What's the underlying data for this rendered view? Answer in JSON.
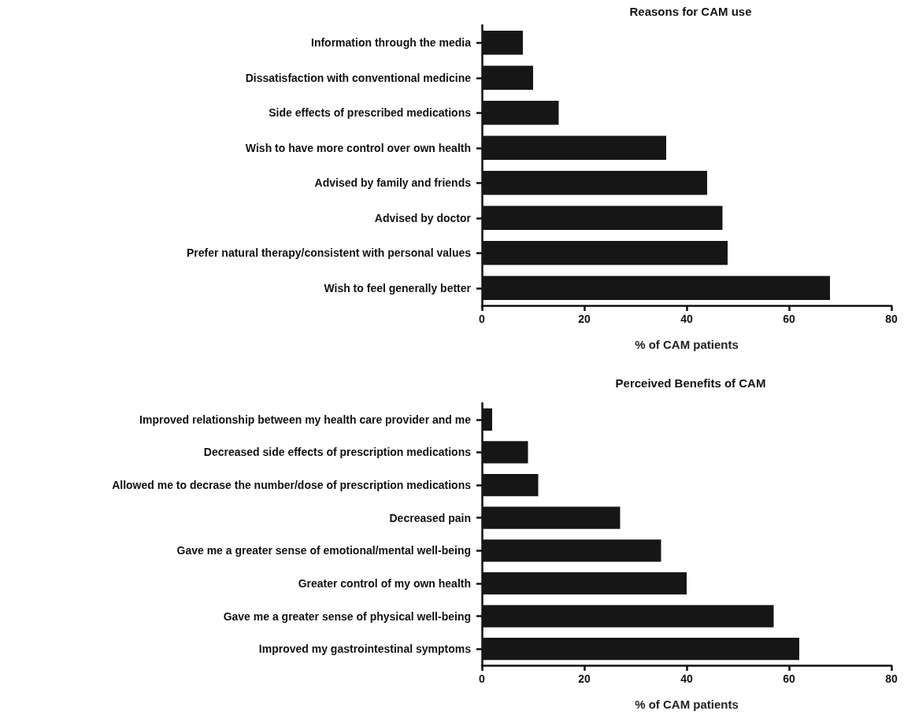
{
  "chart_data": [
    {
      "type": "bar",
      "orientation": "horizontal",
      "title": "Reasons for CAM use",
      "xlabel": "% of CAM patients",
      "categories": [
        "Information through the media",
        "Dissatisfaction with conventional medicine",
        "Side effects of prescribed medications",
        "Wish to have more control over own health",
        "Advised by family and friends",
        "Advised by doctor",
        "Prefer natural therapy/consistent with personal values",
        "Wish to feel generally better"
      ],
      "values": [
        8,
        10,
        15,
        36,
        44,
        47,
        48,
        68
      ],
      "color": "#161616",
      "xlim": [
        0,
        80
      ],
      "xticks": [
        0,
        20,
        40,
        60,
        80
      ],
      "grid": false
    },
    {
      "type": "bar",
      "orientation": "horizontal",
      "title": "Perceived Benefits of CAM",
      "xlabel": "% of CAM patients",
      "categories": [
        "Improved relationship between my health care provider and me",
        "Decreased side effects of prescription medications",
        "Allowed me to decrase the number/dose of prescription medications",
        "Decreased pain",
        "Gave me a greater sense of emotional/mental well-being",
        "Greater control of my own health",
        "Gave me a greater sense of physical well-being",
        "Improved my gastrointestinal symptoms"
      ],
      "values": [
        2,
        9,
        11,
        27,
        35,
        40,
        57,
        62
      ],
      "color": "#161616",
      "xlim": [
        0,
        80
      ],
      "xticks": [
        0,
        20,
        40,
        60,
        80
      ],
      "grid": false
    }
  ]
}
